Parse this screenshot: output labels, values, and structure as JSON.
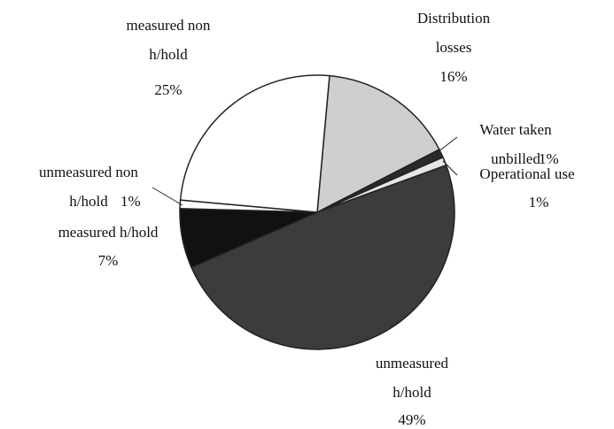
{
  "chart_data": {
    "type": "pie",
    "categories": [
      "Distribution\nlosses",
      "Water taken\nunbilled",
      "Operational use",
      "unmeasured\nh/hold",
      "measured h/hold",
      "unmeasured non\nh/hold",
      "measured non\nh/hold"
    ],
    "values": [
      16,
      1,
      1,
      49,
      7,
      1,
      25
    ],
    "value_labels": [
      "16%",
      "1%",
      "1%",
      "49%",
      "7%",
      "1%",
      "25%"
    ],
    "colors": [
      "#cfcfcf",
      "#2a2a2a",
      "#e6e6e6",
      "#3c3c3c",
      "#111111",
      "#ffffff",
      "#ffffff"
    ]
  }
}
